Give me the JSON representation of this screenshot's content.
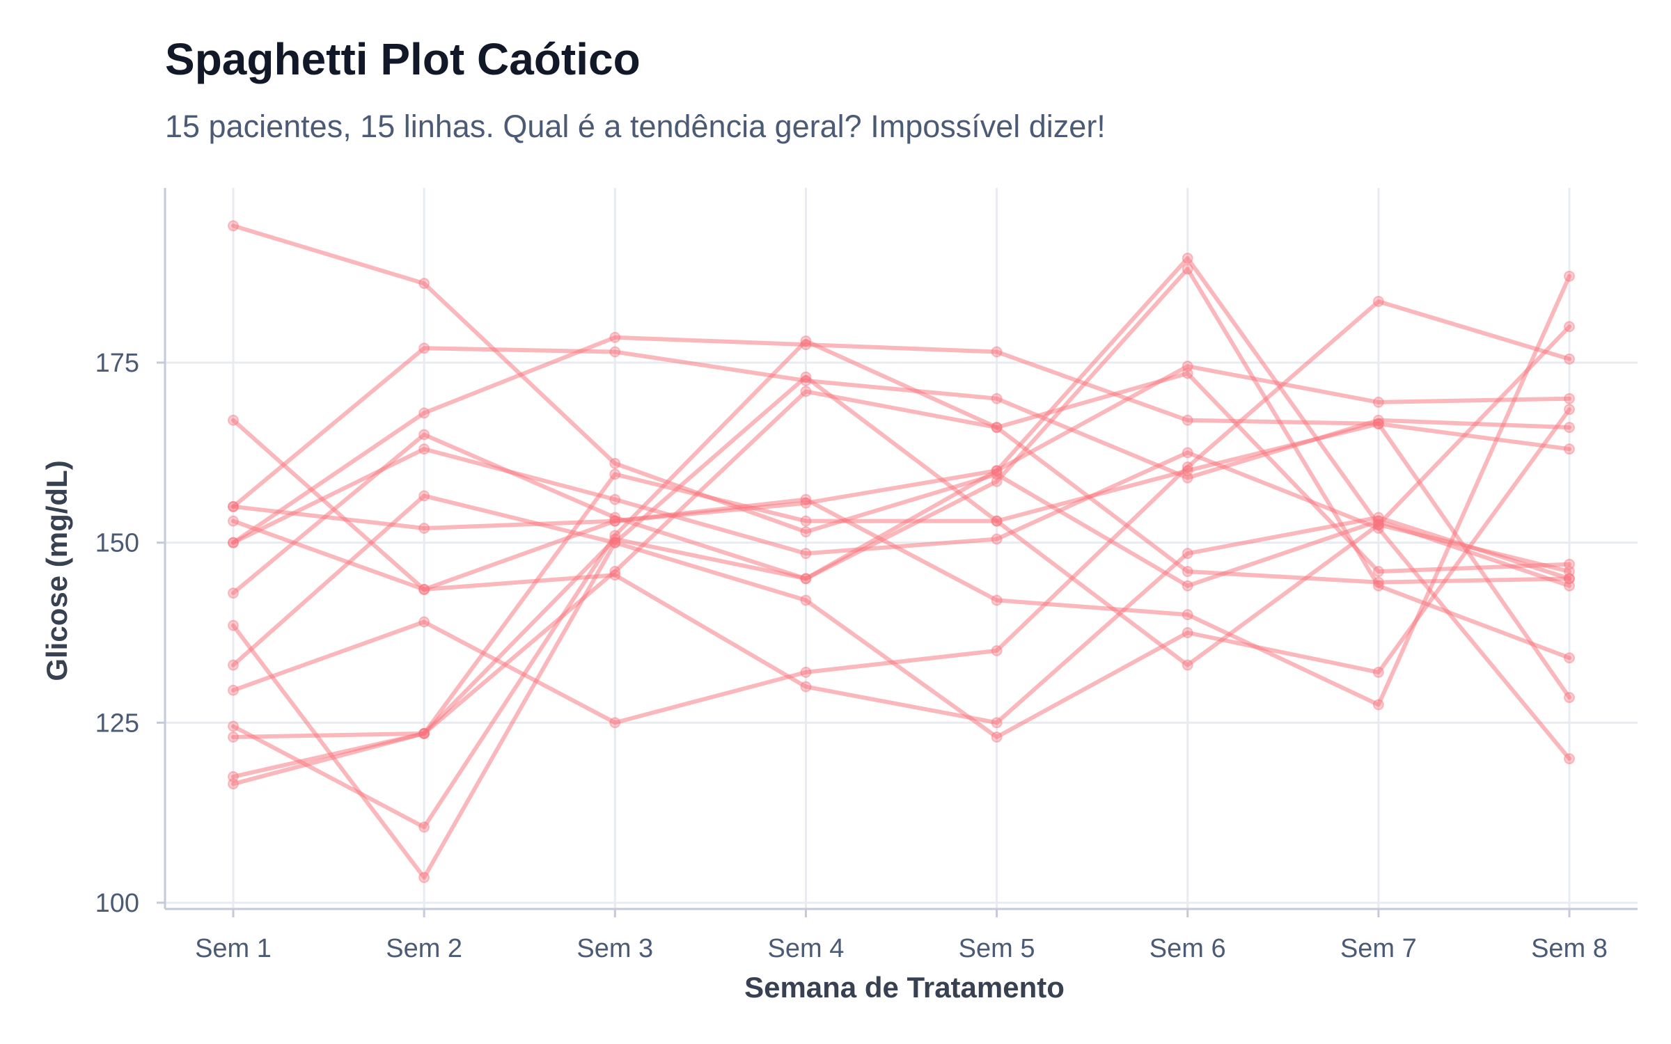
{
  "chart_data": {
    "type": "line",
    "title": "Spaghetti Plot Caótico",
    "subtitle": "15 pacientes, 15 linhas. Qual é a tendência geral? Impossível dizer!",
    "xlabel": "Semana de Tratamento",
    "ylabel": "Glicose (mg/dL)",
    "categories": [
      "Sem 1",
      "Sem 2",
      "Sem 3",
      "Sem 4",
      "Sem 5",
      "Sem 6",
      "Sem 7",
      "Sem 8"
    ],
    "ylim": [
      100,
      196
    ],
    "yticks": [
      100,
      125,
      150,
      175
    ],
    "grid": true,
    "legend": "none",
    "line_color": "#f8717a",
    "series": [
      {
        "values": [
          194,
          186,
          161,
          151.5,
          159.5,
          144,
          153,
          144
        ]
      },
      {
        "values": [
          155,
          177,
          176.5,
          172.5,
          170,
          159,
          167,
          166
        ]
      },
      {
        "values": [
          150,
          168,
          178.5,
          177.5,
          176.5,
          167,
          166.5,
          163
        ]
      },
      {
        "values": [
          150,
          163,
          156,
          148.5,
          150.5,
          162.5,
          152,
          120
        ]
      },
      {
        "values": [
          143,
          165,
          153.5,
          145,
          160,
          189.5,
          152.5,
          146
        ]
      },
      {
        "values": [
          133,
          156.5,
          150,
          142,
          123,
          137.5,
          132,
          168.5
        ]
      },
      {
        "values": [
          129.5,
          139,
          125,
          132,
          135,
          160.5,
          183.5,
          175.5
        ]
      },
      {
        "values": [
          167,
          143.5,
          145.5,
          130,
          125,
          148.5,
          153.5,
          145
        ]
      },
      {
        "values": [
          153,
          143.5,
          153,
          155.5,
          160,
          174.5,
          169.5,
          170
        ]
      },
      {
        "values": [
          124.5,
          110.5,
          151,
          178,
          166,
          146,
          144.5,
          145
        ]
      },
      {
        "values": [
          123,
          123.5,
          150.5,
          145,
          158.5,
          188,
          144,
          134
        ]
      },
      {
        "values": [
          117.5,
          123.5,
          146,
          171,
          166,
          173.5,
          146,
          147
        ]
      },
      {
        "values": [
          116.5,
          123.5,
          159.5,
          153,
          153,
          133,
          152.5,
          180
        ]
      },
      {
        "values": [
          138.5,
          103.5,
          150,
          173,
          153,
          160,
          166.5,
          128.5
        ]
      },
      {
        "values": [
          155,
          152,
          153,
          156,
          142,
          140,
          127.5,
          187
        ]
      }
    ]
  }
}
